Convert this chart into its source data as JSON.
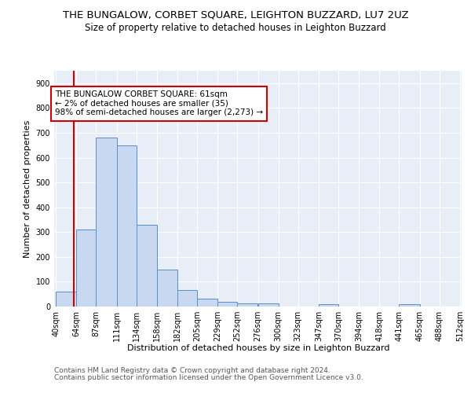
{
  "title": "THE BUNGALOW, CORBET SQUARE, LEIGHTON BUZZARD, LU7 2UZ",
  "subtitle": "Size of property relative to detached houses in Leighton Buzzard",
  "xlabel": "Distribution of detached houses by size in Leighton Buzzard",
  "ylabel": "Number of detached properties",
  "footer1": "Contains HM Land Registry data © Crown copyright and database right 2024.",
  "footer2": "Contains public sector information licensed under the Open Government Licence v3.0.",
  "bar_left_edges": [
    40,
    64,
    87,
    111,
    134,
    158,
    182,
    205,
    229,
    252,
    276,
    300,
    323,
    347,
    370,
    394,
    418,
    441,
    465,
    488
  ],
  "bar_widths": [
    24,
    23,
    24,
    23,
    24,
    24,
    23,
    24,
    23,
    24,
    24,
    23,
    24,
    23,
    24,
    24,
    23,
    24,
    23,
    24
  ],
  "bar_heights": [
    60,
    310,
    680,
    650,
    330,
    150,
    65,
    32,
    20,
    12,
    12,
    0,
    0,
    10,
    0,
    0,
    0,
    8,
    0,
    0
  ],
  "tick_labels": [
    "40sqm",
    "64sqm",
    "87sqm",
    "111sqm",
    "134sqm",
    "158sqm",
    "182sqm",
    "205sqm",
    "229sqm",
    "252sqm",
    "276sqm",
    "300sqm",
    "323sqm",
    "347sqm",
    "370sqm",
    "394sqm",
    "418sqm",
    "441sqm",
    "465sqm",
    "488sqm",
    "512sqm"
  ],
  "bar_color": "#c8d8f0",
  "bar_edge_color": "#5b8ec4",
  "background_color": "#e8eef8",
  "grid_color": "#ffffff",
  "vline_x": 61,
  "vline_color": "#cc0000",
  "annotation_text": "THE BUNGALOW CORBET SQUARE: 61sqm\n← 2% of detached houses are smaller (35)\n98% of semi-detached houses are larger (2,273) →",
  "annotation_box_color": "#cc0000",
  "ylim": [
    0,
    950
  ],
  "yticks": [
    0,
    100,
    200,
    300,
    400,
    500,
    600,
    700,
    800,
    900
  ],
  "title_fontsize": 9.5,
  "subtitle_fontsize": 8.5,
  "axis_label_fontsize": 8.0,
  "tick_fontsize": 7.0,
  "annotation_fontsize": 7.5,
  "footer_fontsize": 6.5
}
